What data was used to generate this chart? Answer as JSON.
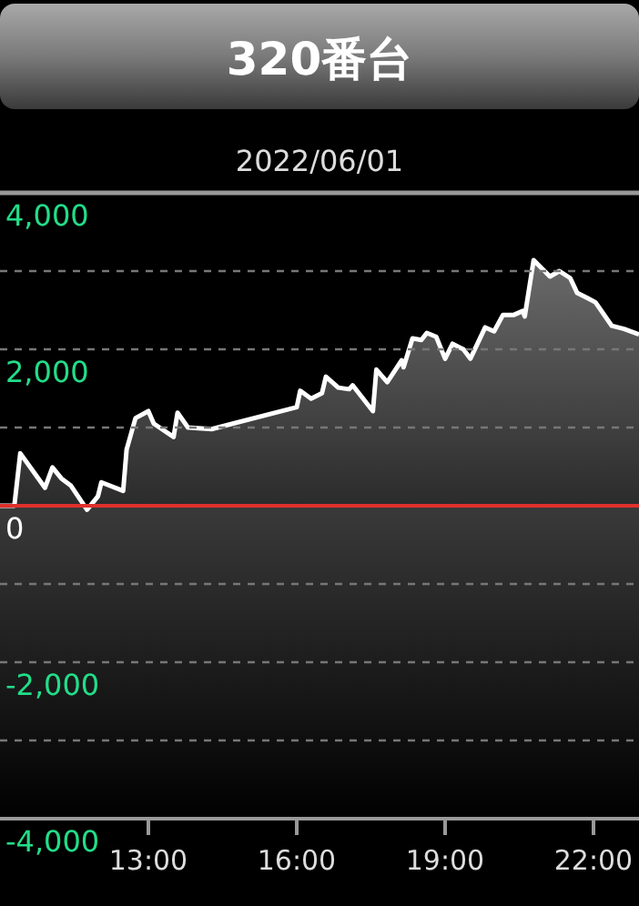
{
  "chart_data": {
    "type": "area",
    "title": "320番台",
    "subtitle": "2022/06/01",
    "x": [
      10.0,
      10.29,
      10.41,
      10.91,
      11.06,
      11.24,
      11.43,
      11.76,
      11.98,
      12.05,
      12.49,
      12.56,
      12.74,
      13.0,
      13.11,
      13.51,
      13.59,
      13.8,
      14.28,
      16.0,
      16.07,
      16.29,
      16.51,
      16.59,
      16.84,
      17.06,
      17.13,
      17.54,
      17.61,
      17.83,
      18.12,
      18.16,
      18.34,
      18.52,
      18.63,
      18.82,
      19.0,
      19.15,
      19.37,
      19.51,
      19.81,
      19.99,
      20.17,
      20.39,
      20.57,
      20.61,
      20.79,
      21.12,
      21.31,
      21.53,
      21.67,
      21.89,
      22.04,
      22.37,
      22.62,
      22.92
    ],
    "series": [
      {
        "color": "#ffffff",
        "values": [
          0,
          0,
          670,
          230,
          490,
          350,
          260,
          -50,
          120,
          300,
          190,
          720,
          1120,
          1210,
          1050,
          880,
          1190,
          1000,
          980,
          1260,
          1470,
          1370,
          1440,
          1650,
          1510,
          1490,
          1540,
          1210,
          1740,
          1580,
          1860,
          1770,
          2140,
          2120,
          2210,
          2160,
          1880,
          2070,
          2000,
          1880,
          2280,
          2230,
          2440,
          2440,
          2490,
          2420,
          3140,
          2930,
          3000,
          2910,
          2720,
          2650,
          2600,
          2300,
          2260,
          2190
        ]
      }
    ],
    "xlim": [
      10,
      22.92
    ],
    "xticks": [
      {
        "value": 13,
        "label": "13:00"
      },
      {
        "value": 16,
        "label": "16:00"
      },
      {
        "value": 19,
        "label": "19:00"
      },
      {
        "value": 22,
        "label": "22:00"
      }
    ],
    "ylim": [
      -4000,
      4000
    ],
    "yticks": [
      {
        "value": -4000,
        "label": "-4,000"
      },
      {
        "value": -3000,
        "label": null
      },
      {
        "value": -2000,
        "label": "-2,000"
      },
      {
        "value": -1000,
        "label": null
      },
      {
        "value": 0,
        "label": "0"
      },
      {
        "value": 1000,
        "label": null
      },
      {
        "value": 2000,
        "label": "2,000"
      },
      {
        "value": 3000,
        "label": null
      },
      {
        "value": 4000,
        "label": "4,000"
      }
    ],
    "grid": "y",
    "ref_lines": [
      {
        "axis": "y",
        "value": 0,
        "color": "#e0302c"
      }
    ]
  }
}
